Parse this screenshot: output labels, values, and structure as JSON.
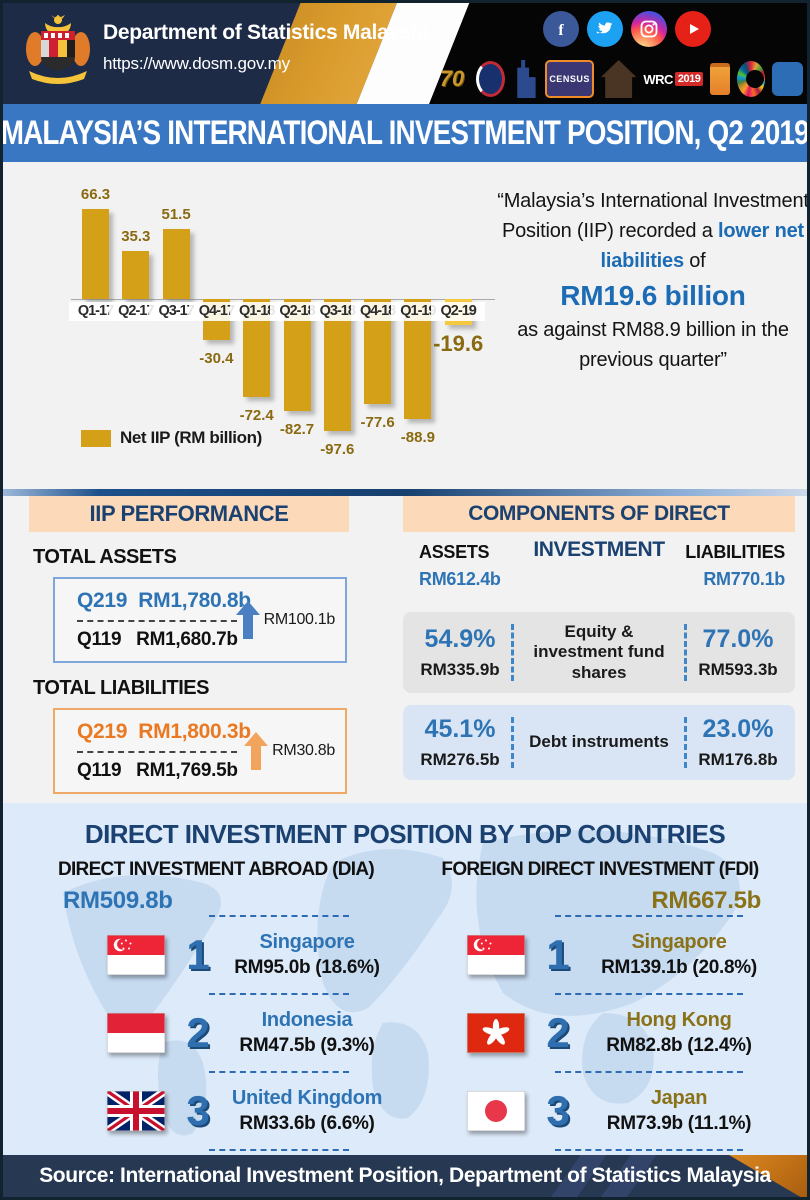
{
  "header": {
    "title": "Department of Statistics Malaysia",
    "url": "https://www.dosm.gov.my",
    "social_icons": [
      "facebook-icon",
      "twitter-icon",
      "instagram-icon",
      "youtube-icon"
    ],
    "logos": [
      "70th-anniversary-logo",
      "statistics-globe-logo",
      "kl-skyline-logo",
      "census-2020-logo",
      "heritage-house-logo",
      "wrc-2019-logo",
      "sdg-wheel-logo",
      "mycensus-logo"
    ],
    "census_text": "CENSUS",
    "wrc_text": "WRC",
    "wrc_year": "2019",
    "anniversary_text": "70"
  },
  "title_bar": {
    "text": "MALAYSIA’S INTERNATIONAL INVESTMENT POSITION, Q2 2019"
  },
  "chart_data": {
    "type": "bar",
    "categories": [
      "Q1-17",
      "Q2-17",
      "Q3-17",
      "Q4-17",
      "Q1-18",
      "Q2-18",
      "Q3-18",
      "Q4-18",
      "Q1-19",
      "Q2-19"
    ],
    "values": [
      66.3,
      35.3,
      51.5,
      -30.4,
      -72.4,
      -82.7,
      -97.6,
      -77.6,
      -88.9,
      -19.6
    ],
    "legend": "Net IIP (RM billion)",
    "bar_color": "#d4a017",
    "highlight_last_color": "#f5c842",
    "value_label_color": "#8a6a10",
    "ylim": [
      -110,
      80
    ],
    "grid": false,
    "legend_position": "bottom-left"
  },
  "quote": {
    "part1": "“Malaysia’s International Investment Position (IIP) recorded a ",
    "highlight": "lower net liabilities",
    "part2": " of",
    "amount": "RM19.6 billion",
    "part3": "as against RM88.9 billion in the previous quarter”",
    "accent_color": "#1c6bb5"
  },
  "iip_performance": {
    "header": "IIP PERFORMANCE",
    "assets": {
      "label": "TOTAL ASSETS",
      "q2_label": "Q219",
      "q2_value": "RM1,780.8b",
      "q1_label": "Q119",
      "q1_value": "RM1,680.7b",
      "change": "RM100.1b",
      "arrow": "up-arrow-blue"
    },
    "liabilities": {
      "label": "TOTAL LIABILITIES",
      "q2_label": "Q219",
      "q2_value": "RM1,800.3b",
      "q1_label": "Q119",
      "q1_value": "RM1,769.5b",
      "change": "RM30.8b",
      "arrow": "up-arrow-orange"
    }
  },
  "components": {
    "header": "COMPONENTS OF DIRECT INVESTMENT",
    "assets_label": "ASSETS",
    "assets_value": "RM612.4b",
    "liabilities_label": "LIABILITIES",
    "liabilities_value": "RM770.1b",
    "rows": [
      {
        "asset_pct": "54.9%",
        "asset_val": "RM335.9b",
        "label": "Equity & investment fund shares",
        "liab_pct": "77.0%",
        "liab_val": "RM593.3b"
      },
      {
        "asset_pct": "45.1%",
        "asset_val": "RM276.5b",
        "label": "Debt instruments",
        "liab_pct": "23.0%",
        "liab_val": "RM176.8b"
      }
    ]
  },
  "bottom": {
    "title": "DIRECT INVESTMENT POSITION BY TOP COUNTRIES",
    "dia": {
      "label": "DIRECT INVESTMENT ABROAD (DIA)",
      "total": "RM509.8b",
      "rows": [
        {
          "rank": "1",
          "country": "Singapore",
          "value": "RM95.0b (18.6%)",
          "flag": "singapore"
        },
        {
          "rank": "2",
          "country": "Indonesia",
          "value": "RM47.5b (9.3%)",
          "flag": "indonesia"
        },
        {
          "rank": "3",
          "country": "United Kingdom",
          "value": "RM33.6b (6.6%)",
          "flag": "united-kingdom"
        }
      ]
    },
    "fdi": {
      "label": "FOREIGN DIRECT INVESTMENT (FDI)",
      "total": "RM667.5b",
      "rows": [
        {
          "rank": "1",
          "country": "Singapore",
          "value": "RM139.1b (20.8%)",
          "flag": "singapore"
        },
        {
          "rank": "2",
          "country": "Hong Kong",
          "value": "RM82.8b (12.4%)",
          "flag": "hong-kong"
        },
        {
          "rank": "3",
          "country": "Japan",
          "value": "RM73.9b (11.1%)",
          "flag": "japan"
        }
      ]
    }
  },
  "footer": {
    "text": "Source: International Investment Position, Department of Statistics Malaysia"
  }
}
